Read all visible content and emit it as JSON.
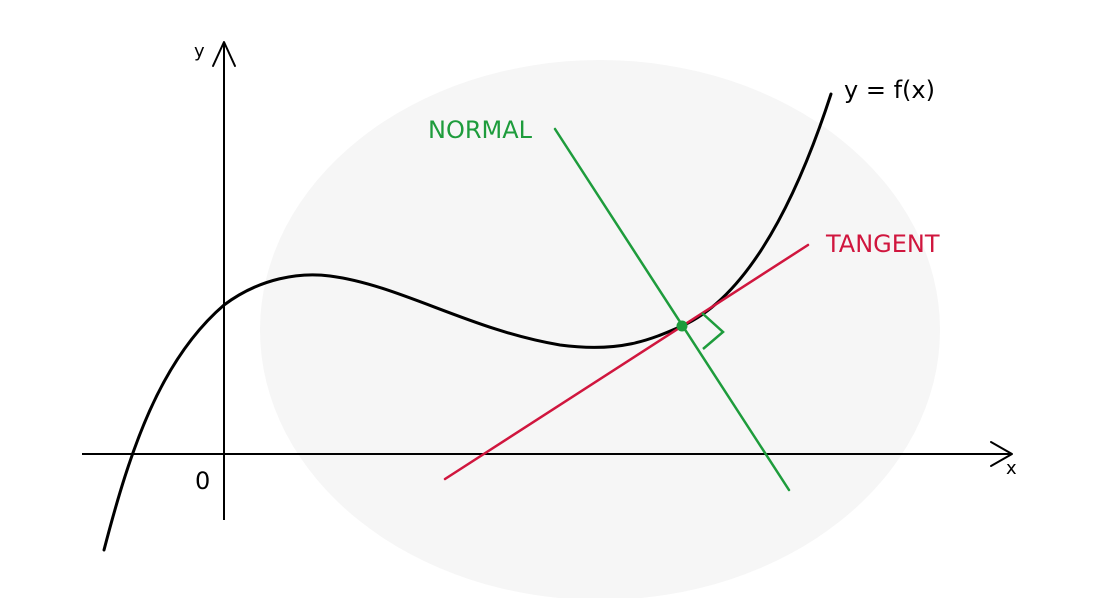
{
  "labels": {
    "y_axis": "y",
    "x_axis": "x",
    "origin": "0",
    "curve": "y = f(x)",
    "normal": "NORMAL",
    "tangent": "TANGENT"
  },
  "colors": {
    "axes": "#000000",
    "curve": "#000000",
    "normal": "#1e9c3c",
    "tangent": "#d0163e",
    "point": "#1e9c3c",
    "background_blob": "#f6f6f6"
  },
  "icons": {
    "y_axis_arrow": "arrowhead-up-icon",
    "x_axis_arrow": "arrowhead-right-icon",
    "right_angle": "right-angle-marker-icon",
    "point": "point-of-contact-icon"
  }
}
